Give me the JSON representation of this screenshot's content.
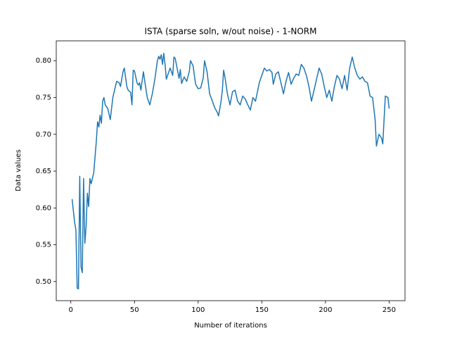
{
  "chart_data": {
    "type": "line",
    "title": "ISTA (sparse soln, w/out noise) - 1-NORM",
    "xlabel": "Number of iterations",
    "ylabel": "Data values",
    "x": [
      1,
      3,
      4,
      5,
      6,
      7,
      8,
      9,
      10,
      11,
      12,
      13,
      14,
      15,
      16,
      18,
      20,
      21,
      22,
      23,
      24,
      25,
      26,
      27,
      29,
      31,
      33,
      35,
      36,
      38,
      39,
      41,
      42,
      44,
      45,
      47,
      48,
      49,
      50,
      52,
      53,
      54,
      55,
      57,
      58,
      60,
      62,
      64,
      66,
      68,
      69,
      70,
      71,
      72,
      73,
      74,
      75,
      76,
      78,
      80,
      81,
      82,
      84,
      85,
      86,
      87,
      89,
      91,
      93,
      94,
      96,
      98,
      100,
      102,
      104,
      105,
      107,
      109,
      111,
      113,
      115,
      116,
      118,
      119,
      120,
      121,
      123,
      125,
      127,
      129,
      131,
      133,
      135,
      137,
      139,
      141,
      143,
      145,
      146,
      148,
      150,
      152,
      154,
      156,
      158,
      159,
      161,
      163,
      165,
      167,
      169,
      171,
      173,
      175,
      177,
      179,
      181,
      183,
      185,
      187,
      189,
      191,
      193,
      195,
      197,
      199,
      201,
      203,
      205,
      207,
      209,
      211,
      213,
      215,
      217,
      219,
      221,
      223,
      225,
      227,
      229,
      231,
      233,
      235,
      237,
      239,
      240,
      242,
      244,
      245,
      247,
      249,
      250
    ],
    "series": [
      {
        "name": "Data values",
        "color": "#1f77b4",
        "values": [
          0.612,
          0.58,
          0.57,
          0.491,
          0.49,
          0.643,
          0.52,
          0.512,
          0.64,
          0.552,
          0.575,
          0.62,
          0.602,
          0.64,
          0.633,
          0.648,
          0.69,
          0.717,
          0.71,
          0.726,
          0.715,
          0.745,
          0.75,
          0.74,
          0.735,
          0.72,
          0.75,
          0.765,
          0.772,
          0.77,
          0.765,
          0.785,
          0.79,
          0.765,
          0.76,
          0.757,
          0.74,
          0.787,
          0.786,
          0.77,
          0.767,
          0.77,
          0.76,
          0.785,
          0.773,
          0.75,
          0.74,
          0.755,
          0.775,
          0.8,
          0.806,
          0.802,
          0.808,
          0.795,
          0.81,
          0.795,
          0.775,
          0.78,
          0.79,
          0.78,
          0.805,
          0.803,
          0.785,
          0.776,
          0.788,
          0.769,
          0.778,
          0.772,
          0.785,
          0.8,
          0.793,
          0.768,
          0.762,
          0.763,
          0.777,
          0.8,
          0.785,
          0.755,
          0.746,
          0.736,
          0.73,
          0.725,
          0.745,
          0.76,
          0.787,
          0.778,
          0.755,
          0.74,
          0.758,
          0.76,
          0.745,
          0.74,
          0.752,
          0.748,
          0.74,
          0.733,
          0.75,
          0.745,
          0.753,
          0.77,
          0.78,
          0.79,
          0.786,
          0.788,
          0.784,
          0.768,
          0.782,
          0.785,
          0.77,
          0.755,
          0.772,
          0.784,
          0.768,
          0.776,
          0.782,
          0.78,
          0.795,
          0.79,
          0.78,
          0.765,
          0.745,
          0.76,
          0.775,
          0.79,
          0.782,
          0.765,
          0.75,
          0.76,
          0.745,
          0.765,
          0.78,
          0.775,
          0.762,
          0.78,
          0.76,
          0.79,
          0.805,
          0.79,
          0.78,
          0.775,
          0.778,
          0.772,
          0.77,
          0.752,
          0.75,
          0.72,
          0.684,
          0.7,
          0.695,
          0.687,
          0.752,
          0.75,
          0.735
        ]
      }
    ],
    "xlim": [
      -11.45,
      262.45
    ],
    "xticks": [
      0,
      50,
      100,
      150,
      200,
      250
    ],
    "ylim": [
      0.474,
      0.827
    ],
    "yticks": [
      {
        "value": 0.5,
        "label": "0.50"
      },
      0.55,
      {
        "value": 0.6,
        "label": "0.60"
      },
      0.65,
      {
        "value": 0.7,
        "label": "0.70"
      },
      0.75,
      {
        "value": 0.8,
        "label": "0.80"
      }
    ],
    "grid": false
  }
}
